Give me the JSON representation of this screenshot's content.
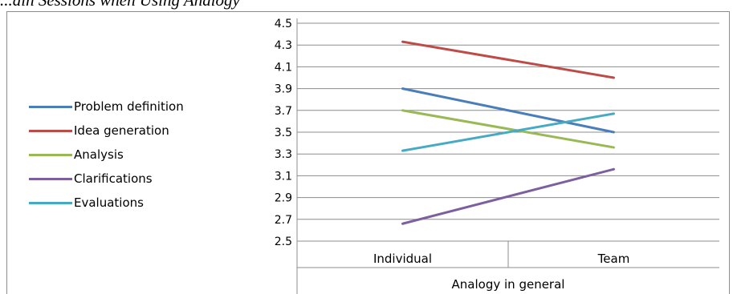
{
  "caption": "...ain Sessions when Using Analogy",
  "chart_data": {
    "type": "line",
    "categories": [
      "Individual",
      "Team"
    ],
    "group_label": "Analogy in general",
    "ylim": [
      2.5,
      4.5
    ],
    "yticks": [
      "4.5",
      "4.3",
      "4.1",
      "3.9",
      "3.7",
      "3.5",
      "3.3",
      "3.1",
      "2.9",
      "2.7",
      "2.5"
    ],
    "grid": true,
    "legend_position": "left",
    "series": [
      {
        "name": "Problem definition",
        "values": [
          3.9,
          3.5
        ],
        "color": "#4a7ebb"
      },
      {
        "name": "Idea generation",
        "values": [
          4.33,
          4.0
        ],
        "color": "#be4b48"
      },
      {
        "name": "Analysis",
        "values": [
          3.7,
          3.36
        ],
        "color": "#98b954"
      },
      {
        "name": "Clarifications",
        "values": [
          2.66,
          3.16
        ],
        "color": "#7d5fa0"
      },
      {
        "name": "Evaluations",
        "values": [
          3.33,
          3.67
        ],
        "color": "#46aac5"
      }
    ]
  }
}
